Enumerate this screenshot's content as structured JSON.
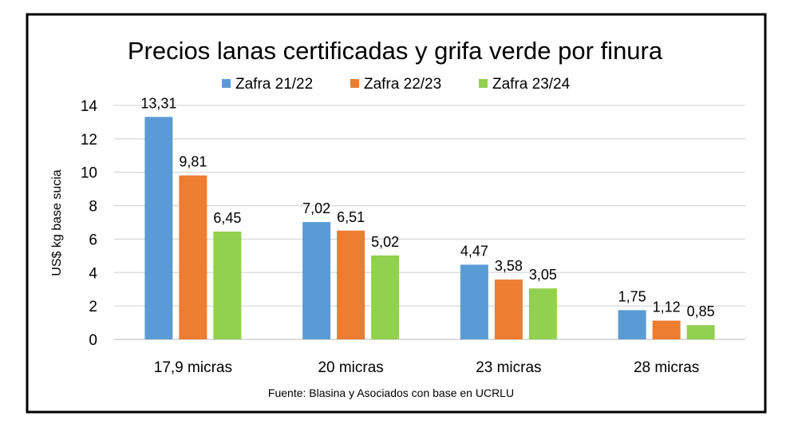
{
  "chart_data": {
    "type": "bar",
    "title": "Precios lanas certificadas y grifa verde por finura",
    "ylabel": "US$ kg base sucia",
    "xlabel": "",
    "source": "Fuente: Blasina y Asociados con base en UCRLU",
    "categories": [
      "17,9 micras",
      "20 micras",
      "23 micras",
      "28 micras"
    ],
    "ylim": [
      0,
      14
    ],
    "yticks": [
      0,
      2,
      4,
      6,
      8,
      10,
      12,
      14
    ],
    "grid": true,
    "legend_position": "top",
    "series": [
      {
        "name": "Zafra 21/22",
        "color": "#5B9BD5",
        "values": [
          13.31,
          7.02,
          4.47,
          1.75
        ],
        "labels": [
          "13,31",
          "7,02",
          "4,47",
          "1,75"
        ]
      },
      {
        "name": "Zafra 22/23",
        "color": "#ED7D31",
        "values": [
          9.81,
          6.51,
          3.58,
          1.12
        ],
        "labels": [
          "9,81",
          "6,51",
          "3,58",
          "1,12"
        ]
      },
      {
        "name": "Zafra 23/24",
        "color": "#92D050",
        "values": [
          6.45,
          5.02,
          3.05,
          0.85
        ],
        "labels": [
          "6,45",
          "5,02",
          "3,05",
          "0,85"
        ]
      }
    ]
  }
}
